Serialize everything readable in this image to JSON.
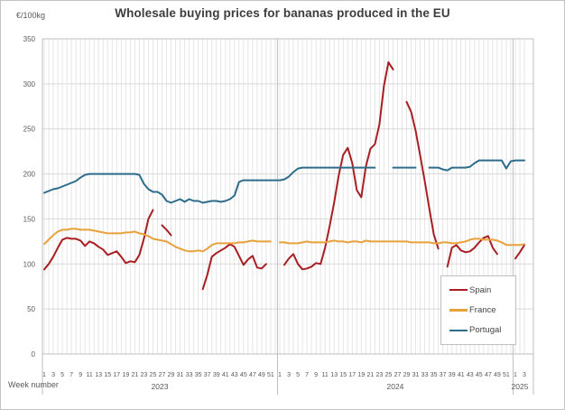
{
  "figure": {
    "title": "Wholesale buying prices for bananas produced in the EU",
    "y_unit_label": "€/100kg",
    "x_axis_label": "Week number"
  },
  "colors": {
    "spain_line": "#a81e22",
    "france_line": "#e9a13b",
    "portugal_line": "#2e6c8c",
    "gridline_horizontal": "#d9d9d9",
    "gridline_vertical": "#e5e5e5",
    "plot_border": "#bfbfbf",
    "axis_text": "#595959",
    "title_text": "#3d3d3d"
  },
  "chart_data": {
    "type": "line",
    "title": "Wholesale buying prices for bananas produced in the EU",
    "ylabel_unit": "€/100kg",
    "xlabel": "Week number",
    "ylim": [
      0,
      350
    ],
    "yticks": [
      0,
      50,
      100,
      150,
      200,
      250,
      300,
      350
    ],
    "grid": "vertical gridline per week, horizontal every 50",
    "legend_position": "inside bottom-right",
    "x_axis_note": "week number within each year, labels every 2 weeks",
    "years": [
      {
        "label": "2023",
        "weeks": 52,
        "tick_labels": [
          "1",
          "3",
          "5",
          "7",
          "9",
          "11",
          "13",
          "15",
          "17",
          "19",
          "21",
          "23",
          "25",
          "27",
          "29",
          "31",
          "33",
          "35",
          "37",
          "39",
          "41",
          "43",
          "45",
          "47",
          "49",
          "51"
        ]
      },
      {
        "label": "2024",
        "weeks": 52,
        "tick_labels": [
          "1",
          "3",
          "5",
          "7",
          "9",
          "11",
          "13",
          "15",
          "17",
          "19",
          "21",
          "23",
          "25",
          "27",
          "29",
          "31",
          "33",
          "35",
          "37",
          "39",
          "41",
          "43",
          "45",
          "47",
          "49",
          "51"
        ]
      },
      {
        "label": "2025",
        "weeks": 3,
        "tick_labels": [
          "1",
          "3"
        ]
      }
    ],
    "series": [
      {
        "name": "Spain",
        "color": "#a81e22",
        "values_by_year": {
          "2023": [
            94,
            100,
            108,
            118,
            127,
            129,
            128,
            128,
            126,
            120,
            125,
            123,
            119,
            116,
            110,
            112,
            114,
            108,
            101,
            103,
            102,
            110,
            128,
            150,
            160,
            null,
            143,
            138,
            132,
            null,
            null,
            null,
            null,
            null,
            null,
            72,
            88,
            108,
            112,
            115,
            118,
            122,
            119,
            109,
            99,
            105,
            109,
            96,
            95,
            100,
            null,
            null
          ],
          "2024": [
            null,
            99,
            106,
            111,
            100,
            94,
            95,
            97,
            101,
            100,
            118,
            142,
            168,
            198,
            221,
            229,
            212,
            182,
            174,
            208,
            228,
            233,
            255,
            298,
            324,
            316,
            null,
            null,
            280,
            269,
            248,
            220,
            192,
            162,
            133,
            117,
            null,
            97,
            118,
            121,
            115,
            113,
            114,
            118,
            124,
            129,
            131,
            118,
            111,
            null,
            null,
            null
          ],
          "2025": [
            106,
            113,
            121
          ]
        }
      },
      {
        "name": "France",
        "color": "#e9a13b",
        "values_by_year": {
          "2023": [
            122,
            127,
            132,
            136,
            138,
            138,
            139,
            139,
            138,
            138,
            138,
            137,
            136,
            135,
            134,
            134,
            134,
            134,
            135,
            135,
            136,
            134,
            133,
            131,
            128,
            127,
            126,
            125,
            122,
            119,
            117,
            115,
            114,
            114,
            115,
            114,
            117,
            121,
            123,
            123,
            123,
            123,
            123,
            124,
            124,
            125,
            126,
            125,
            125,
            125,
            125,
            null
          ],
          "2024": [
            124,
            124,
            123,
            123,
            123,
            124,
            125,
            124,
            124,
            124,
            124,
            125,
            126,
            125,
            125,
            124,
            125,
            125,
            124,
            126,
            125,
            125,
            125,
            125,
            125,
            125,
            125,
            125,
            125,
            124,
            124,
            124,
            124,
            124,
            123,
            123,
            124,
            124,
            123,
            123,
            124,
            125,
            127,
            128,
            128,
            127,
            127,
            127,
            126,
            124,
            121,
            121
          ],
          "2025": [
            121,
            121,
            122
          ]
        }
      },
      {
        "name": "Portugal",
        "color": "#2e6c8c",
        "values_by_year": {
          "2023": [
            179,
            181,
            183,
            184,
            186,
            188,
            190,
            192,
            196,
            199,
            200,
            200,
            200,
            200,
            200,
            200,
            200,
            200,
            200,
            200,
            200,
            199,
            189,
            183,
            180,
            180,
            177,
            170,
            168,
            170,
            172,
            169,
            172,
            170,
            170,
            168,
            169,
            170,
            170,
            169,
            170,
            172,
            176,
            191,
            193,
            193,
            193,
            193,
            193,
            193,
            193,
            193
          ],
          "2024": [
            193,
            194,
            197,
            202,
            206,
            207,
            207,
            207,
            207,
            207,
            207,
            207,
            207,
            207,
            207,
            207,
            207,
            207,
            207,
            207,
            207,
            207,
            null,
            null,
            null,
            207,
            207,
            207,
            207,
            207,
            207,
            null,
            null,
            207,
            207,
            207,
            205,
            204,
            207,
            207,
            207,
            207,
            208,
            212,
            215,
            215,
            215,
            215,
            215,
            215,
            206,
            214
          ],
          "2025": [
            215,
            215,
            215
          ]
        }
      }
    ]
  }
}
